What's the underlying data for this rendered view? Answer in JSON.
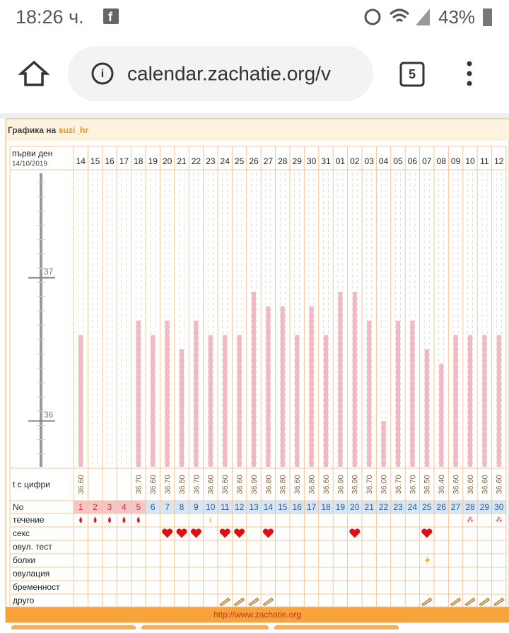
{
  "status_bar": {
    "time": "18:26 ч.",
    "battery": "43%"
  },
  "browser": {
    "url": "calendar.zachatie.org/v",
    "tabs": "5"
  },
  "header": {
    "title": "Графика на",
    "user": "suzi_hr",
    "first_day_label": "първи ден",
    "first_day": "14/10/2019"
  },
  "chart_data": {
    "type": "bar",
    "color": "#f1b9c1",
    "categories": [
      "14",
      "15",
      "16",
      "17",
      "18",
      "19",
      "20",
      "21",
      "22",
      "23",
      "24",
      "25",
      "26",
      "27",
      "28",
      "29",
      "30",
      "31",
      "01",
      "02",
      "03",
      "04",
      "05",
      "06",
      "07",
      "08",
      "09",
      "10",
      "11",
      "12"
    ],
    "values": [
      36.6,
      null,
      null,
      null,
      36.7,
      36.6,
      36.7,
      36.5,
      36.7,
      36.6,
      36.6,
      36.6,
      36.9,
      36.8,
      36.8,
      36.6,
      36.8,
      36.6,
      36.9,
      36.9,
      36.7,
      36.0,
      36.7,
      36.7,
      36.5,
      36.4,
      36.6,
      36.6,
      36.6,
      36.6
    ],
    "value_labels": [
      "36.60",
      null,
      null,
      null,
      "36.70",
      "36.60",
      "36.70",
      "36.50",
      "36.70",
      "36.60",
      "36.60",
      "36.60",
      "36.90",
      "36.80",
      "36.80",
      "36.60",
      "36.80",
      "36.60",
      "36.90",
      "36.90",
      "36.70",
      "36.00",
      "36.70",
      "36.70",
      "36.50",
      "36.40",
      "36.60",
      "36.60",
      "36.60",
      "36.60"
    ],
    "ylim": [
      35.67,
      37.73
    ],
    "yticks": [
      36,
      37
    ]
  },
  "table": {
    "t_label": "t с цифри",
    "no_label": "No",
    "cycle_days": [
      1,
      2,
      3,
      4,
      5,
      6,
      7,
      8,
      9,
      10,
      11,
      12,
      13,
      14,
      15,
      16,
      17,
      18,
      19,
      20,
      21,
      22,
      23,
      24,
      25,
      26,
      27,
      28,
      29,
      30
    ],
    "row_labels": [
      "течение",
      "секс",
      "овул. тест",
      "болки",
      "овулация",
      "бременност",
      "друго"
    ]
  },
  "footer": {
    "url": "http://www.zachatie.org"
  }
}
